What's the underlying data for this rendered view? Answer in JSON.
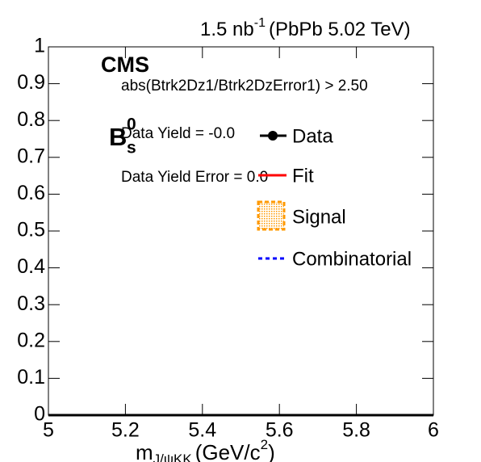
{
  "chart_data": {
    "type": "line",
    "lumi": "1.5 nb",
    "lumi_exponent": "-1",
    "energy": "(PbPb 5.02 TeV)",
    "experiment": "CMS",
    "selection": "abs(Btrk2Dz1/Btrk2DzError1) > 2.50",
    "particle": "B",
    "particle_subscript": "s",
    "particle_superscript": "0",
    "annotations": [
      "Data Yield = -0.0",
      "Data Yield Error = 0.0"
    ],
    "x_label": {
      "symbol": "m",
      "subscript": "J/ψKK",
      "unit": "(GeV/c",
      "unit_exponent": "2",
      "unit_close": ")"
    },
    "series": [
      {
        "name": "Data",
        "color": "#000000",
        "values": []
      },
      {
        "name": "Fit",
        "color": "#ff0000",
        "values": []
      },
      {
        "name": "Signal",
        "color": "#ff9900",
        "values": []
      },
      {
        "name": "Combinatorial",
        "color": "#0000ff",
        "values": []
      }
    ],
    "xlim": [
      5,
      6
    ],
    "xticks": [
      5,
      5.2,
      5.4,
      5.6,
      5.8,
      6
    ],
    "ylim": [
      0,
      1
    ],
    "yticks": [
      0,
      0.1,
      0.2,
      0.3,
      0.4,
      0.5,
      0.6,
      0.7,
      0.8,
      0.9,
      1
    ]
  }
}
